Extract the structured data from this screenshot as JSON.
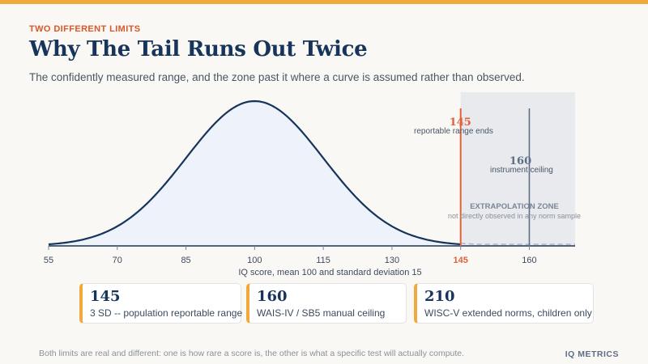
{
  "header": {
    "eyebrow": "TWO DIFFERENT LIMITS",
    "title": "Why The Tail Runs Out Twice",
    "subtitle": "The confidently measured range, and the zone past it where a curve is assumed rather than observed."
  },
  "colors": {
    "accent": "#f2a93b",
    "curve": "#17345a",
    "reportable_line": "#e0613a",
    "ceiling_line": "#5d6e86",
    "extrapolation_zone": "#e8eaee"
  },
  "chart_data": {
    "type": "area",
    "distribution": {
      "mean": 100,
      "sd": 15
    },
    "xlim": [
      55,
      170
    ],
    "xticks": [
      55,
      70,
      85,
      100,
      115,
      130,
      145,
      160
    ],
    "xlabel": "IQ score, mean 100 and standard deviation 15",
    "grid": false,
    "markers": [
      {
        "x": 145,
        "value_label": "145",
        "label": "reportable range ends"
      },
      {
        "x": 160,
        "value_label": "160",
        "label": "instrument ceiling"
      }
    ],
    "zone": {
      "from": 145,
      "to": 170,
      "title": "EXTRAPOLATION ZONE",
      "note": "not directly observed in any norm sample"
    }
  },
  "cards": [
    {
      "value": "145",
      "label": "3 SD -- population reportable range"
    },
    {
      "value": "160",
      "label": "WAIS-IV / SB5 manual ceiling"
    },
    {
      "value": "210",
      "label": "WISC-V extended norms, children only"
    }
  ],
  "footer": {
    "note": "Both limits are real and different: one is how rare a score is, the other is what a specific test will actually compute.",
    "brand": "IQ METRICS"
  }
}
